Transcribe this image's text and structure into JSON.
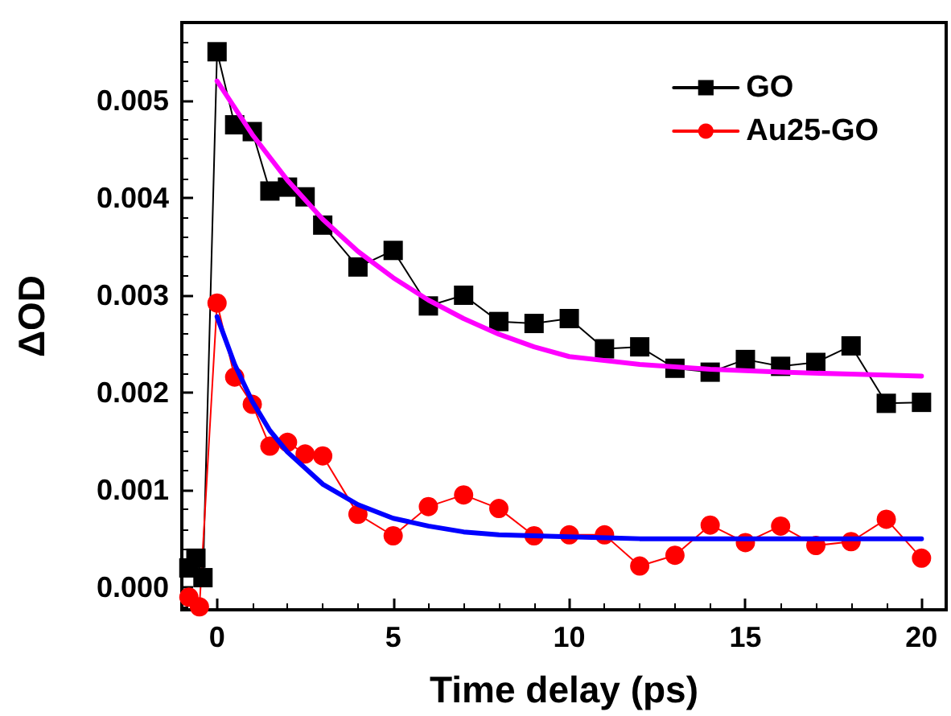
{
  "chart_data": {
    "type": "line",
    "xlabel": "Time delay (ps)",
    "ylabel": "ΔOD",
    "xlim": [
      -1,
      20.7
    ],
    "xticks": [
      0,
      5,
      10,
      15,
      20
    ],
    "ylim": [
      -0.00023,
      0.0058
    ],
    "yticks": [
      {
        "value": 0,
        "label": "0.000"
      },
      {
        "value": 0.001,
        "label": "0.001"
      },
      {
        "value": 0.002,
        "label": "0.002"
      },
      {
        "value": 0.003,
        "label": "0.003"
      },
      {
        "value": 0.004,
        "label": "0.004"
      },
      {
        "value": 0.005,
        "label": "0.005"
      }
    ],
    "grid": false,
    "legend": "top right",
    "series": [
      {
        "name": "GO",
        "color": "#000000",
        "marker": "square",
        "x": [
          -0.8,
          -0.6,
          -0.4,
          0,
          0.5,
          1,
          1.5,
          2,
          2.5,
          3,
          4,
          5,
          6,
          7,
          8,
          9,
          10,
          11,
          12,
          13,
          14,
          15,
          16,
          17,
          18,
          19,
          20
        ],
        "values": [
          0.0002,
          0.0003,
          0.0001,
          0.0055,
          0.00475,
          0.00468,
          0.00407,
          0.00411,
          0.00401,
          0.00372,
          0.00329,
          0.00346,
          0.00289,
          0.003,
          0.00273,
          0.00271,
          0.00276,
          0.00245,
          0.00247,
          0.00225,
          0.00221,
          0.00234,
          0.00227,
          0.00231,
          0.00248,
          0.00189,
          0.0019
        ]
      },
      {
        "name": "Au25-GO",
        "color": "#ff0000",
        "marker": "circle",
        "x": [
          -0.8,
          -0.5,
          0,
          0.5,
          1,
          1.5,
          2,
          2.5,
          3,
          4,
          5,
          6,
          7,
          8,
          9,
          10,
          11,
          12,
          13,
          14,
          15,
          16,
          17,
          18,
          19,
          20
        ],
        "values": [
          -0.0001,
          -0.0002,
          0.00292,
          0.00216,
          0.00188,
          0.00145,
          0.00149,
          0.00137,
          0.00135,
          0.00075,
          0.00053,
          0.00083,
          0.00095,
          0.00081,
          0.00053,
          0.00054,
          0.00054,
          0.00022,
          0.00033,
          0.00064,
          0.00046,
          0.00063,
          0.00043,
          0.00047,
          0.0007,
          0.0003
        ]
      },
      {
        "color": "#ff00ff",
        "marker": "none",
        "x": [
          0,
          1,
          2,
          3,
          4,
          5,
          6,
          7,
          8,
          9,
          10,
          12,
          14,
          16,
          18,
          20
        ],
        "values": [
          0.0052,
          0.00465,
          0.00418,
          0.00378,
          0.00345,
          0.00318,
          0.00295,
          0.00276,
          0.0026,
          0.00247,
          0.00237,
          0.00229,
          0.00224,
          0.00221,
          0.00219,
          0.00217
        ]
      },
      {
        "color": "#0000ff",
        "marker": "none",
        "x": [
          0,
          0.5,
          1,
          1.5,
          2,
          3,
          4,
          5,
          6,
          7,
          8,
          10,
          12,
          15,
          20
        ],
        "values": [
          0.00278,
          0.00229,
          0.00191,
          0.00161,
          0.00139,
          0.00106,
          0.00085,
          0.00071,
          0.00063,
          0.00057,
          0.00054,
          0.00052,
          0.0005,
          0.0005,
          0.0005
        ]
      }
    ]
  }
}
